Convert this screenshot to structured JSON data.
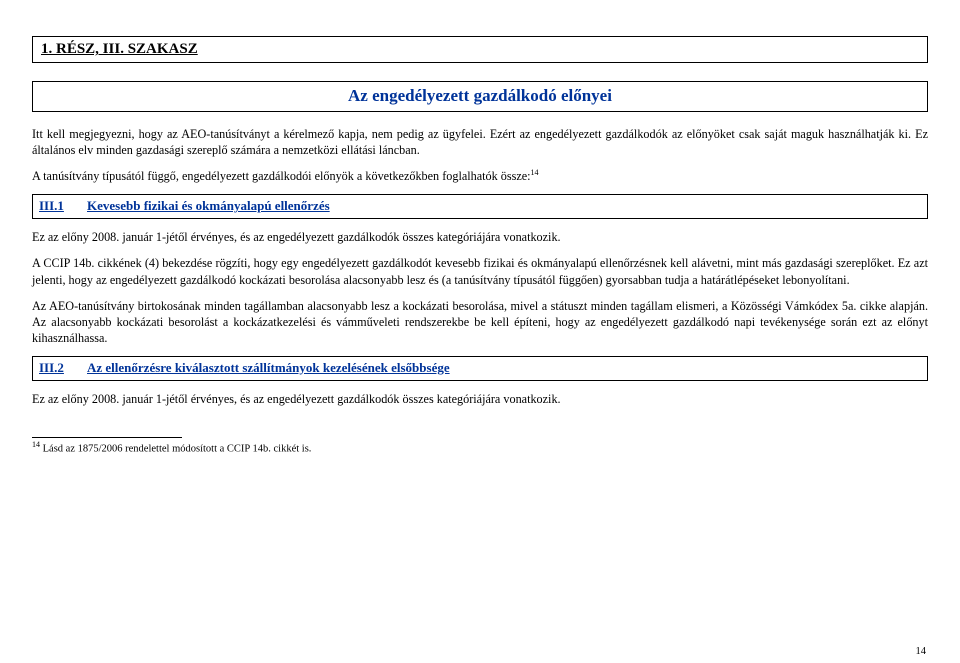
{
  "colors": {
    "link": "#003399",
    "text": "#000000",
    "bg": "#ffffff",
    "border": "#000000"
  },
  "titleBar": "1. RÉSZ, III. SZAKASZ",
  "subtitle": "Az engedélyezett gazdálkodó előnyei",
  "intro1": "Itt kell megjegyezni, hogy az AEO-tanúsítványt a kérelmező kapja, nem pedig az ügyfelei. Ezért az engedélyezett gazdálkodók az előnyöket csak saját maguk használhatják ki. Ez általános elv minden gazdasági szereplő számára a nemzetközi ellátási láncban.",
  "intro2_a": "A tanúsítvány típusától függő, engedélyezett gazdálkodói előnyök a következőkben foglalhatók össze:",
  "intro2_sup": "14",
  "sec1": {
    "num": "III.1",
    "title": "Kevesebb fizikai és okmányalapú ellenőrzés"
  },
  "p1": "Ez az előny 2008. január 1-jétől érvényes, és az engedélyezett gazdálkodók összes kategóriájára vonatkozik.",
  "p2": "A CCIP 14b. cikkének (4) bekezdése rögzíti, hogy egy engedélyezett gazdálkodót kevesebb fizikai és okmányalapú ellenőrzésnek kell alávetni, mint más gazdasági szereplőket. Ez azt jelenti, hogy az engedélyezett gazdálkodó kockázati besorolása alacsonyabb lesz és (a tanúsítvány típusától függően) gyorsabban tudja a határátlépéseket lebonyolítani.",
  "p3": "Az AEO-tanúsítvány birtokosának minden tagállamban alacsonyabb lesz a kockázati besorolása, mivel a státuszt minden tagállam elismeri, a Közösségi Vámkódex 5a. cikke alapján. Az alacsonyabb kockázati besorolást a kockázatkezelési és vámműveleti rendszerekbe be kell építeni, hogy az engedélyezett gazdálkodó napi tevékenysége során ezt az előnyt kihasználhassa.",
  "sec2": {
    "num": "III.2",
    "title": "Az ellenőrzésre kiválasztott szállítmányok kezelésének elsőbbsége"
  },
  "p4": "Ez az előny 2008. január 1-jétől érvényes, és az engedélyezett gazdálkodók összes kategóriájára vonatkozik.",
  "footnote": {
    "num": "14",
    "text": " Lásd az 1875/2006 rendelettel módosított a CCIP 14b. cikkét is."
  },
  "pageNumber": "14"
}
